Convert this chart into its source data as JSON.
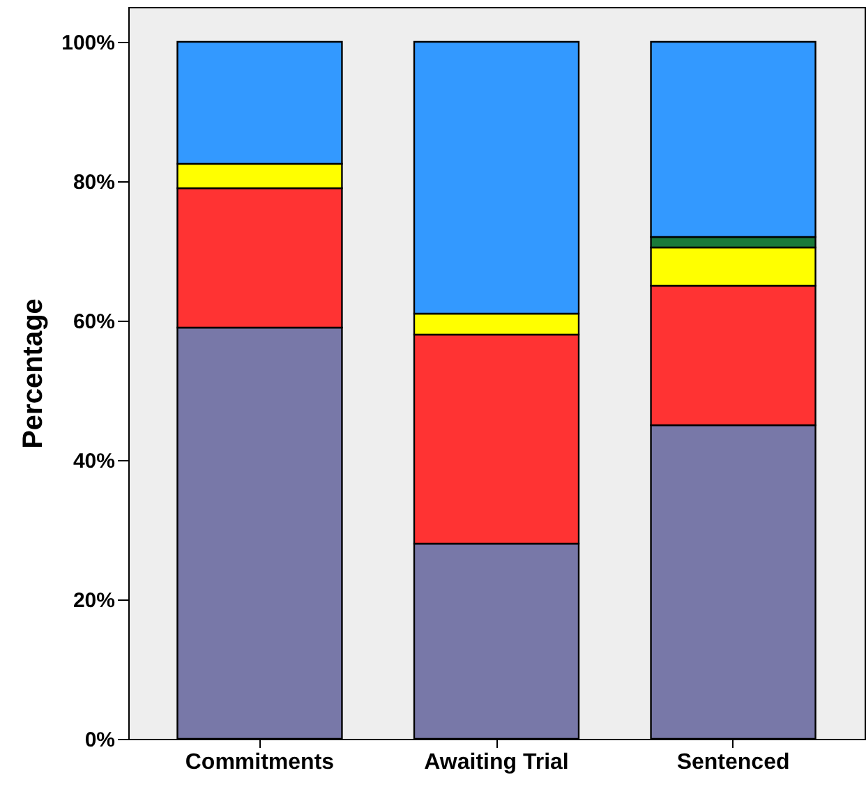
{
  "chart_data": {
    "type": "bar",
    "stacked": true,
    "ylabel": "Percentage",
    "categories": [
      "Commitments",
      "Awaiting Trial",
      "Sentenced"
    ],
    "series": [
      {
        "color": "#7878a8",
        "values": [
          59,
          28,
          45
        ]
      },
      {
        "color": "#ff3333",
        "values": [
          20,
          30,
          20
        ]
      },
      {
        "color": "#ffff00",
        "values": [
          3.5,
          3,
          5.5
        ]
      },
      {
        "color": "#1a7a3a",
        "values": [
          null,
          null,
          1.5
        ]
      },
      {
        "color": "#3399ff",
        "values": [
          17.5,
          39,
          28
        ]
      }
    ],
    "ylim": [
      0,
      105
    ],
    "yticks": [
      {
        "value": 0,
        "label": "0%"
      },
      {
        "value": 20,
        "label": "20%"
      },
      {
        "value": 40,
        "label": "40%"
      },
      {
        "value": 60,
        "label": "60%"
      },
      {
        "value": 80,
        "label": "80%"
      },
      {
        "value": 100,
        "label": "100%"
      }
    ],
    "grid": false
  }
}
